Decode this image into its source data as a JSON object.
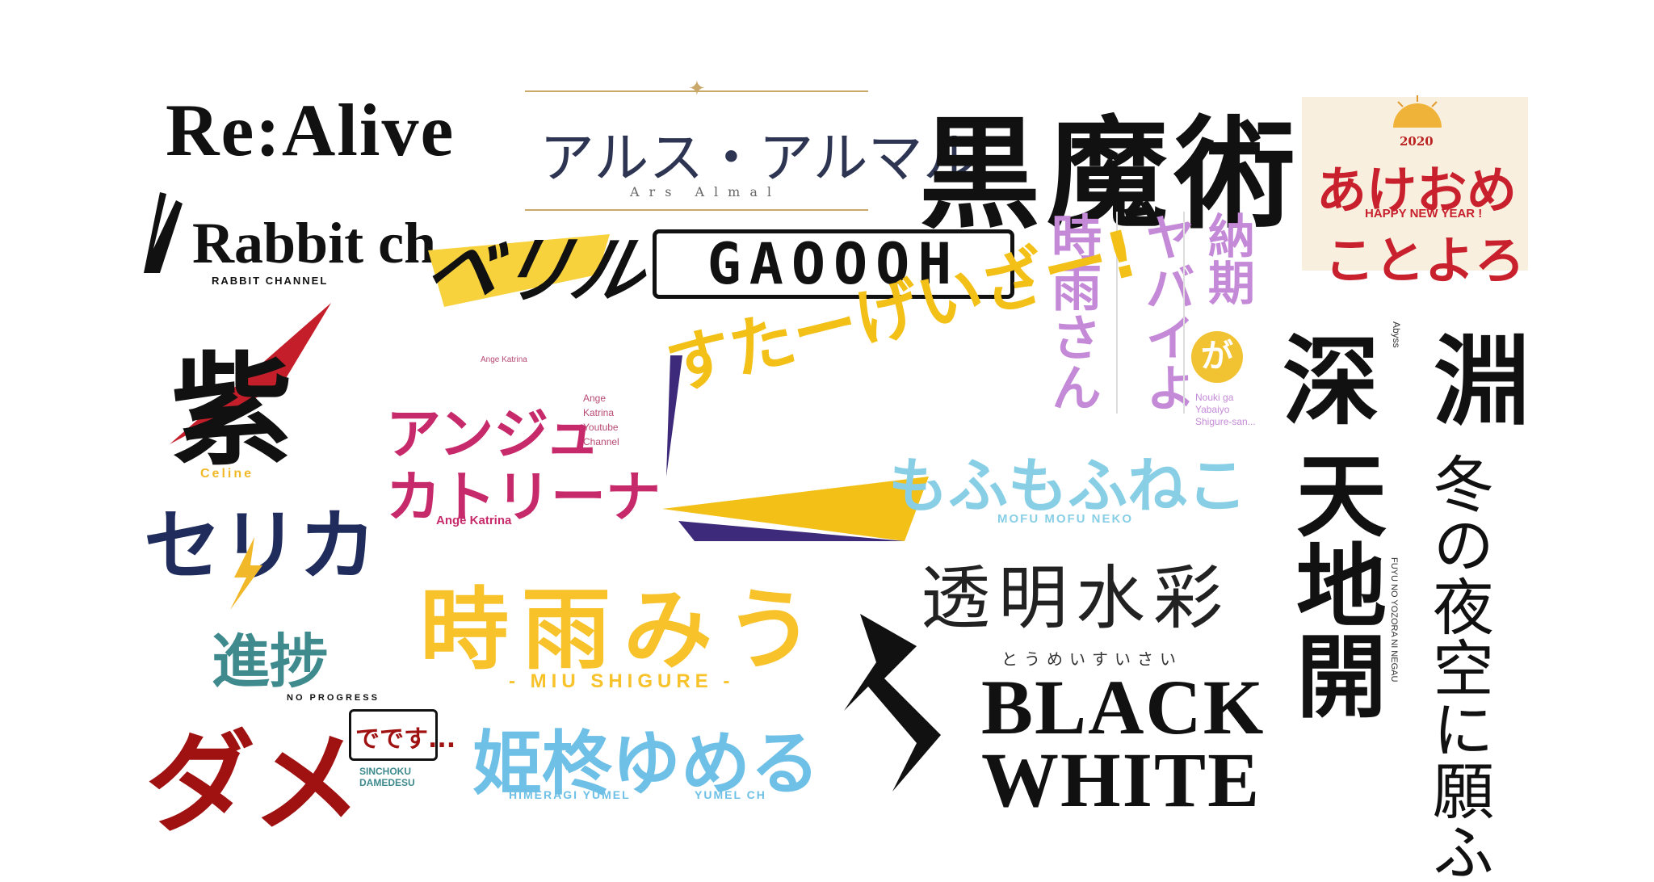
{
  "logos": {
    "realive": {
      "title": "Re:Alive",
      "sub": "Rabbit ch",
      "sub2": "RABBIT CHANNEL"
    },
    "arsalmal": {
      "title": "アルス・アルマル",
      "sub": "Ars Almal"
    },
    "kokumajutsu": {
      "title": "黒魔術"
    },
    "akeome": {
      "line1": "あけおめ",
      "line2": "ことよろ",
      "year": "2020",
      "banner": "HAPPY NEW YEAR !"
    },
    "scribble": {
      "text": "ベリル"
    },
    "gaooo": {
      "text": "GAOOOH"
    },
    "noki": {
      "col1": "時雨さん",
      "col2": "ヤバイよ",
      "col3a": "納期",
      "col3b": "が",
      "note1": "Nouki ga",
      "note2": "Yabaiyo",
      "note3": "Shigure-san..."
    },
    "shinen": {
      "left": "深",
      "right": "淵",
      "tiny": "Abyss"
    },
    "spiky": {
      "text": "紫"
    },
    "ange": {
      "line1": "アンジュ",
      "line2": "カトリーナ",
      "side": "Ange Katrina Youtube Channel",
      "foot": "Ange Katrina",
      "top": "Ange Katrina"
    },
    "sutage": {
      "text": "すたーげいざー!"
    },
    "mofu": {
      "text": "もふもふねこ",
      "sub": "MOFU MOFU NEKO"
    },
    "celine": {
      "tiny": "Celine",
      "text": "セリカ"
    },
    "shigurewu": {
      "text": "時雨みう",
      "sub": "- MIU SHIGURE -"
    },
    "toumei": {
      "text": "透明水彩",
      "kana": "とうめいすいさい"
    },
    "tenchi": {
      "text": "天地開"
    },
    "fuyu": {
      "text": "冬の夜空に願ふ",
      "small": "FUYU NO YOZORA NI NEGAU"
    },
    "shinchoku": {
      "line1": "進捗",
      "sub": "NO PROGRESS",
      "big": "ダメ",
      "tail": "でです...",
      "foot": "SINCHOKU DAMEDESU"
    },
    "himeragi": {
      "text": "姫柊ゆめる",
      "sub": "HIMERAGI YUMEL",
      "sub2": "YUMEL CH"
    },
    "blackwhite": {
      "line1": "BLACK",
      "line2": "WHITE"
    }
  }
}
